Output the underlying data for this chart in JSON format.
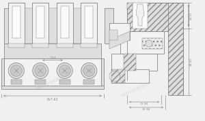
{
  "bg_color": "#f0f0f0",
  "lc": "#888888",
  "lc_dark": "#666666",
  "lw_main": 0.6,
  "lw_thin": 0.35,
  "lw_dim": 0.45,
  "fc_body": "#e8e8e8",
  "fc_light": "#f2f2f2",
  "fc_mid": "#dedede",
  "fc_dark": "#d0d0d0",
  "fc_darker": "#c8c8c8",
  "fc_white": "#fafafa",
  "label_px762": "Px7.62",
  "label_762": "7.62",
  "label_dim1": "21.30",
  "label_dim2": "22.98",
  "label_dim3": "14.70",
  "label_dim4": "38.50"
}
